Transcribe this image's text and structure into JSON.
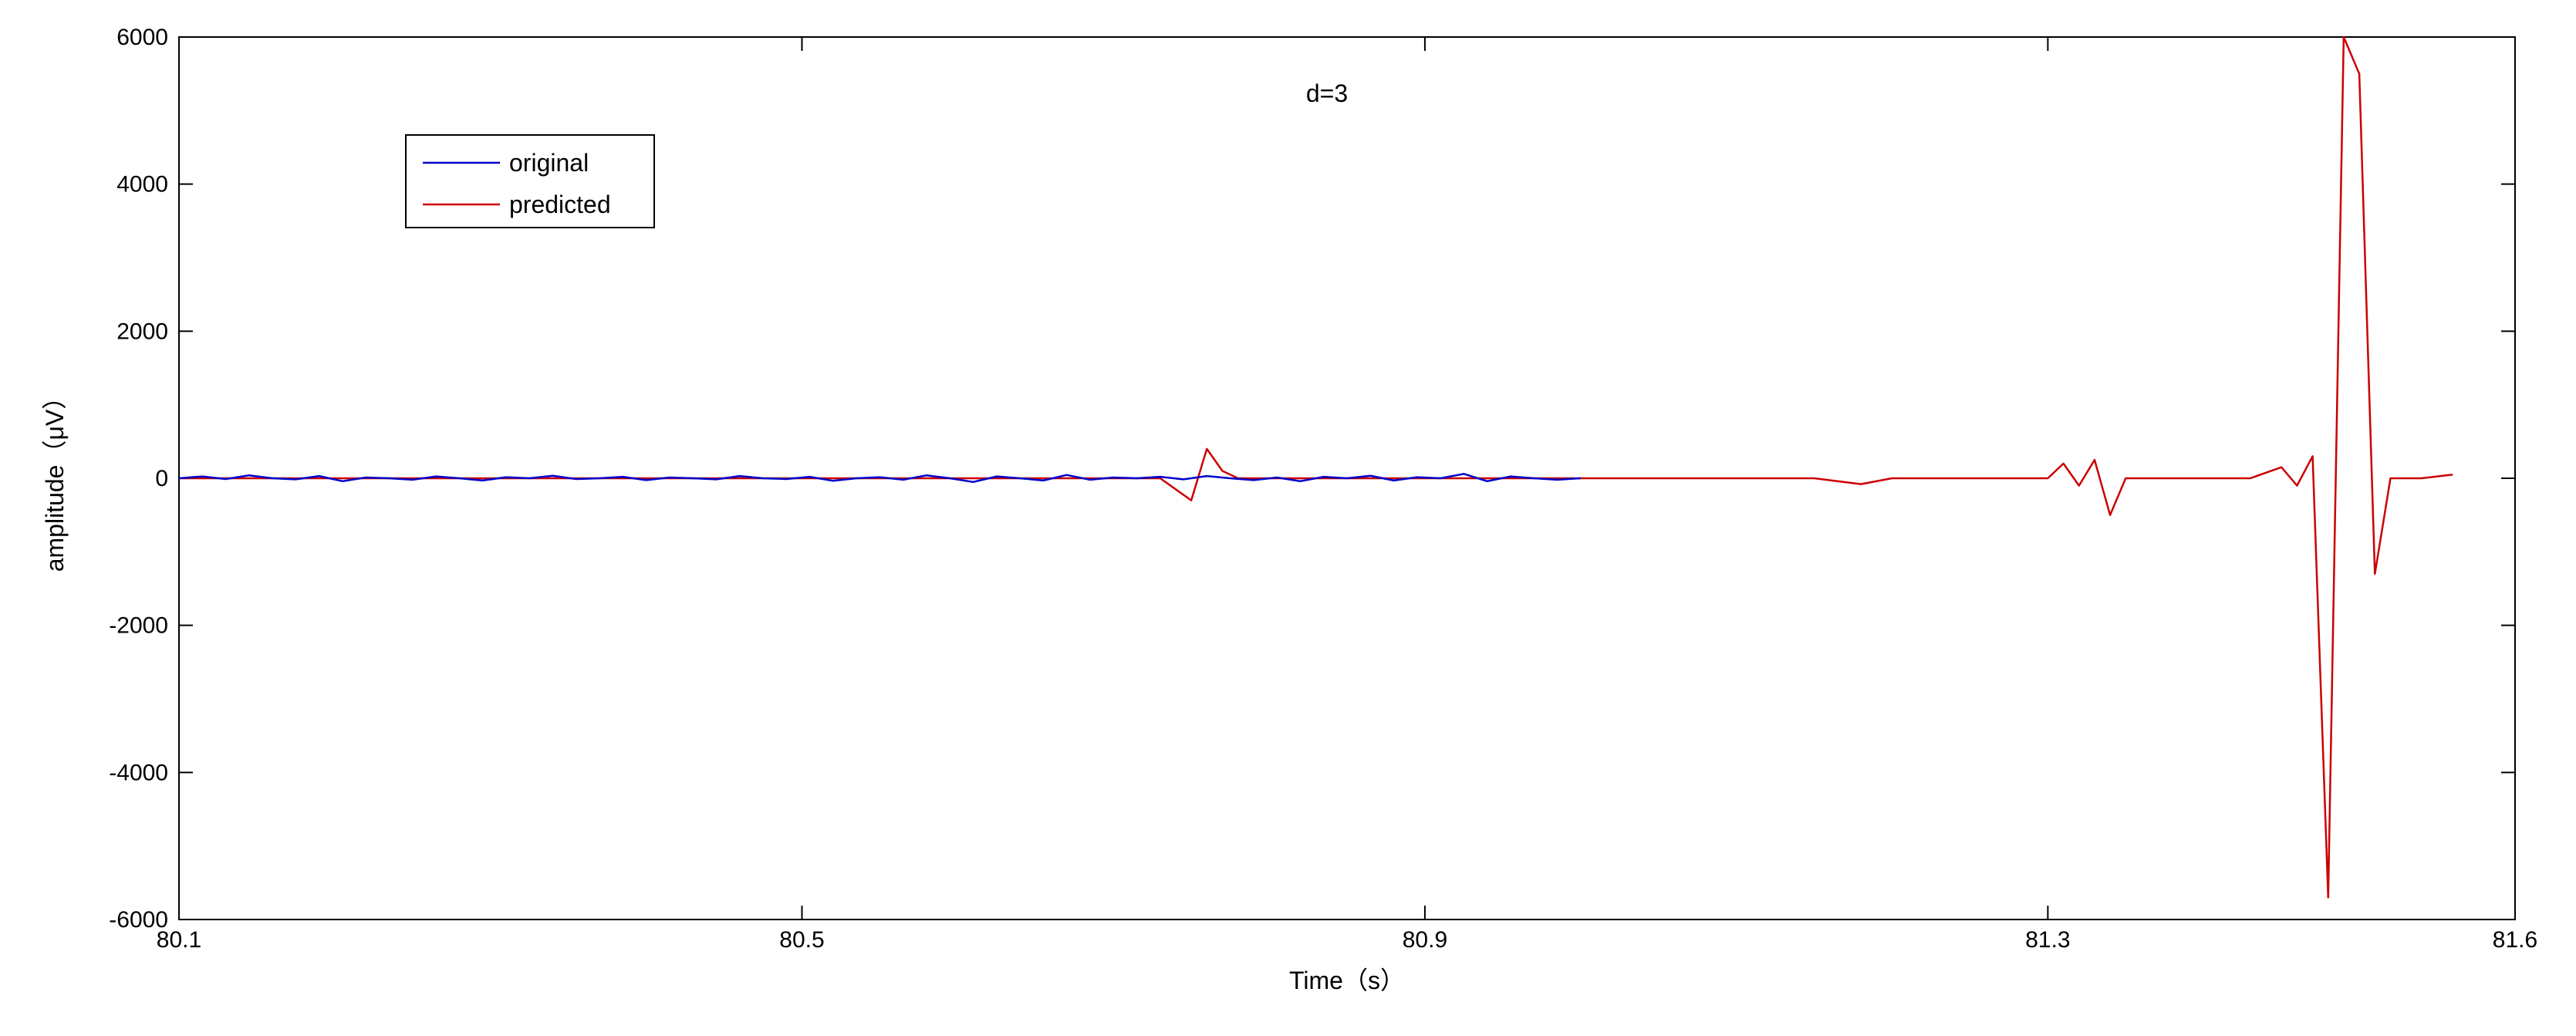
{
  "chart_data": {
    "type": "line",
    "title": "",
    "annotation": "d=3",
    "xlabel": "Time（s）",
    "ylabel": "amplitude（μV）",
    "xlim": [
      80.1,
      81.6
    ],
    "ylim": [
      -6000,
      6000
    ],
    "xticks": [
      80.1,
      80.5,
      80.9,
      81.3,
      81.6
    ],
    "xtick_labels": [
      "80.1",
      "80.5",
      "80.9",
      "81.3",
      "81.6"
    ],
    "yticks": [
      -6000,
      -4000,
      -2000,
      0,
      2000,
      4000,
      6000
    ],
    "ytick_labels": [
      "-6000",
      "-4000",
      "-2000",
      "0",
      "2000",
      "4000",
      "6000"
    ],
    "grid": false,
    "legend_position": "top-left",
    "series": [
      {
        "name": "original",
        "color": "#0000cc",
        "x": [
          80.1,
          80.115,
          80.13,
          80.145,
          80.16,
          80.175,
          80.19,
          80.205,
          80.22,
          80.235,
          80.25,
          80.265,
          80.28,
          80.295,
          80.31,
          80.325,
          80.34,
          80.355,
          80.37,
          80.385,
          80.4,
          80.415,
          80.43,
          80.445,
          80.46,
          80.475,
          80.49,
          80.505,
          80.52,
          80.535,
          80.55,
          80.565,
          80.58,
          80.595,
          80.61,
          80.625,
          80.64,
          80.655,
          80.67,
          80.685,
          80.7,
          80.715,
          80.73,
          80.745,
          80.76,
          80.775,
          80.79,
          80.805,
          80.82,
          80.835,
          80.85,
          80.865,
          80.88,
          80.895,
          80.91,
          80.925,
          80.94,
          80.955,
          80.97,
          80.985,
          81.0
        ],
        "y": [
          0,
          25,
          -10,
          40,
          0,
          -15,
          30,
          -40,
          10,
          0,
          -20,
          25,
          0,
          -30,
          15,
          0,
          35,
          -10,
          0,
          20,
          -25,
          10,
          0,
          -15,
          30,
          0,
          -10,
          20,
          -35,
          0,
          15,
          -20,
          40,
          0,
          -50,
          25,
          0,
          -30,
          45,
          -20,
          10,
          0,
          20,
          -15,
          30,
          0,
          -25,
          10,
          -40,
          20,
          0,
          35,
          -30,
          15,
          0,
          60,
          -40,
          25,
          0,
          -20,
          0
        ]
      },
      {
        "name": "predicted",
        "color": "#cc0000",
        "x": [
          80.1,
          80.15,
          80.2,
          80.25,
          80.3,
          80.35,
          80.4,
          80.45,
          80.5,
          80.55,
          80.6,
          80.65,
          80.7,
          80.73,
          80.75,
          80.76,
          80.77,
          80.78,
          80.8,
          80.85,
          80.9,
          80.95,
          81.0,
          81.05,
          81.1,
          81.15,
          81.18,
          81.2,
          81.25,
          81.3,
          81.31,
          81.32,
          81.33,
          81.34,
          81.35,
          81.37,
          81.4,
          81.43,
          81.45,
          81.46,
          81.47,
          81.48,
          81.49,
          81.5,
          81.51,
          81.52,
          81.53,
          81.54,
          81.56
        ],
        "y": [
          0,
          0,
          0,
          0,
          0,
          0,
          0,
          0,
          0,
          0,
          0,
          0,
          0,
          0,
          -300,
          400,
          100,
          0,
          0,
          0,
          0,
          0,
          0,
          0,
          0,
          0,
          -80,
          0,
          0,
          0,
          200,
          -100,
          250,
          -500,
          0,
          0,
          0,
          0,
          150,
          -100,
          300,
          -5700,
          6000,
          5500,
          -1300,
          0,
          0,
          0,
          50
        ]
      }
    ]
  }
}
